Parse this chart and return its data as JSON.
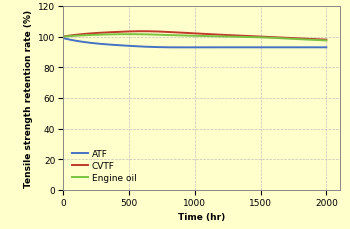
{
  "title": "",
  "xlabel": "Time (hr)",
  "ylabel": "Tensile strength retention rate (%)",
  "xlim": [
    0,
    2100
  ],
  "ylim": [
    0,
    120
  ],
  "xticks": [
    0,
    500,
    1000,
    1500,
    2000
  ],
  "yticks": [
    0,
    20,
    40,
    60,
    80,
    100,
    120
  ],
  "background_color": "#FFFFCC",
  "grid_color": "#BBBBBB",
  "series": [
    {
      "label": "ATF",
      "color": "#4472C4",
      "x": [
        0,
        200,
        400,
        600,
        800,
        1000,
        1250,
        1500,
        1750,
        2000
      ],
      "y": [
        99,
        96,
        94.5,
        93.5,
        93,
        93,
        93,
        93,
        93,
        93
      ]
    },
    {
      "label": "CVTF",
      "color": "#C0392B",
      "x": [
        0,
        200,
        400,
        600,
        800,
        1000,
        1250,
        1500,
        1750,
        2000
      ],
      "y": [
        100,
        102,
        103,
        103.5,
        103,
        102,
        101,
        100,
        99,
        98
      ]
    },
    {
      "label": "Engine oil",
      "color": "#7AC241",
      "x": [
        0,
        200,
        400,
        600,
        800,
        1000,
        1250,
        1500,
        1750,
        2000
      ],
      "y": [
        100,
        101,
        101.5,
        101.5,
        101,
        100.5,
        100,
        99.5,
        98.5,
        97.5
      ]
    }
  ],
  "legend_fontsize": 6.5,
  "axis_label_fontsize": 6.5,
  "tick_fontsize": 6.5,
  "linewidth": 1.4
}
